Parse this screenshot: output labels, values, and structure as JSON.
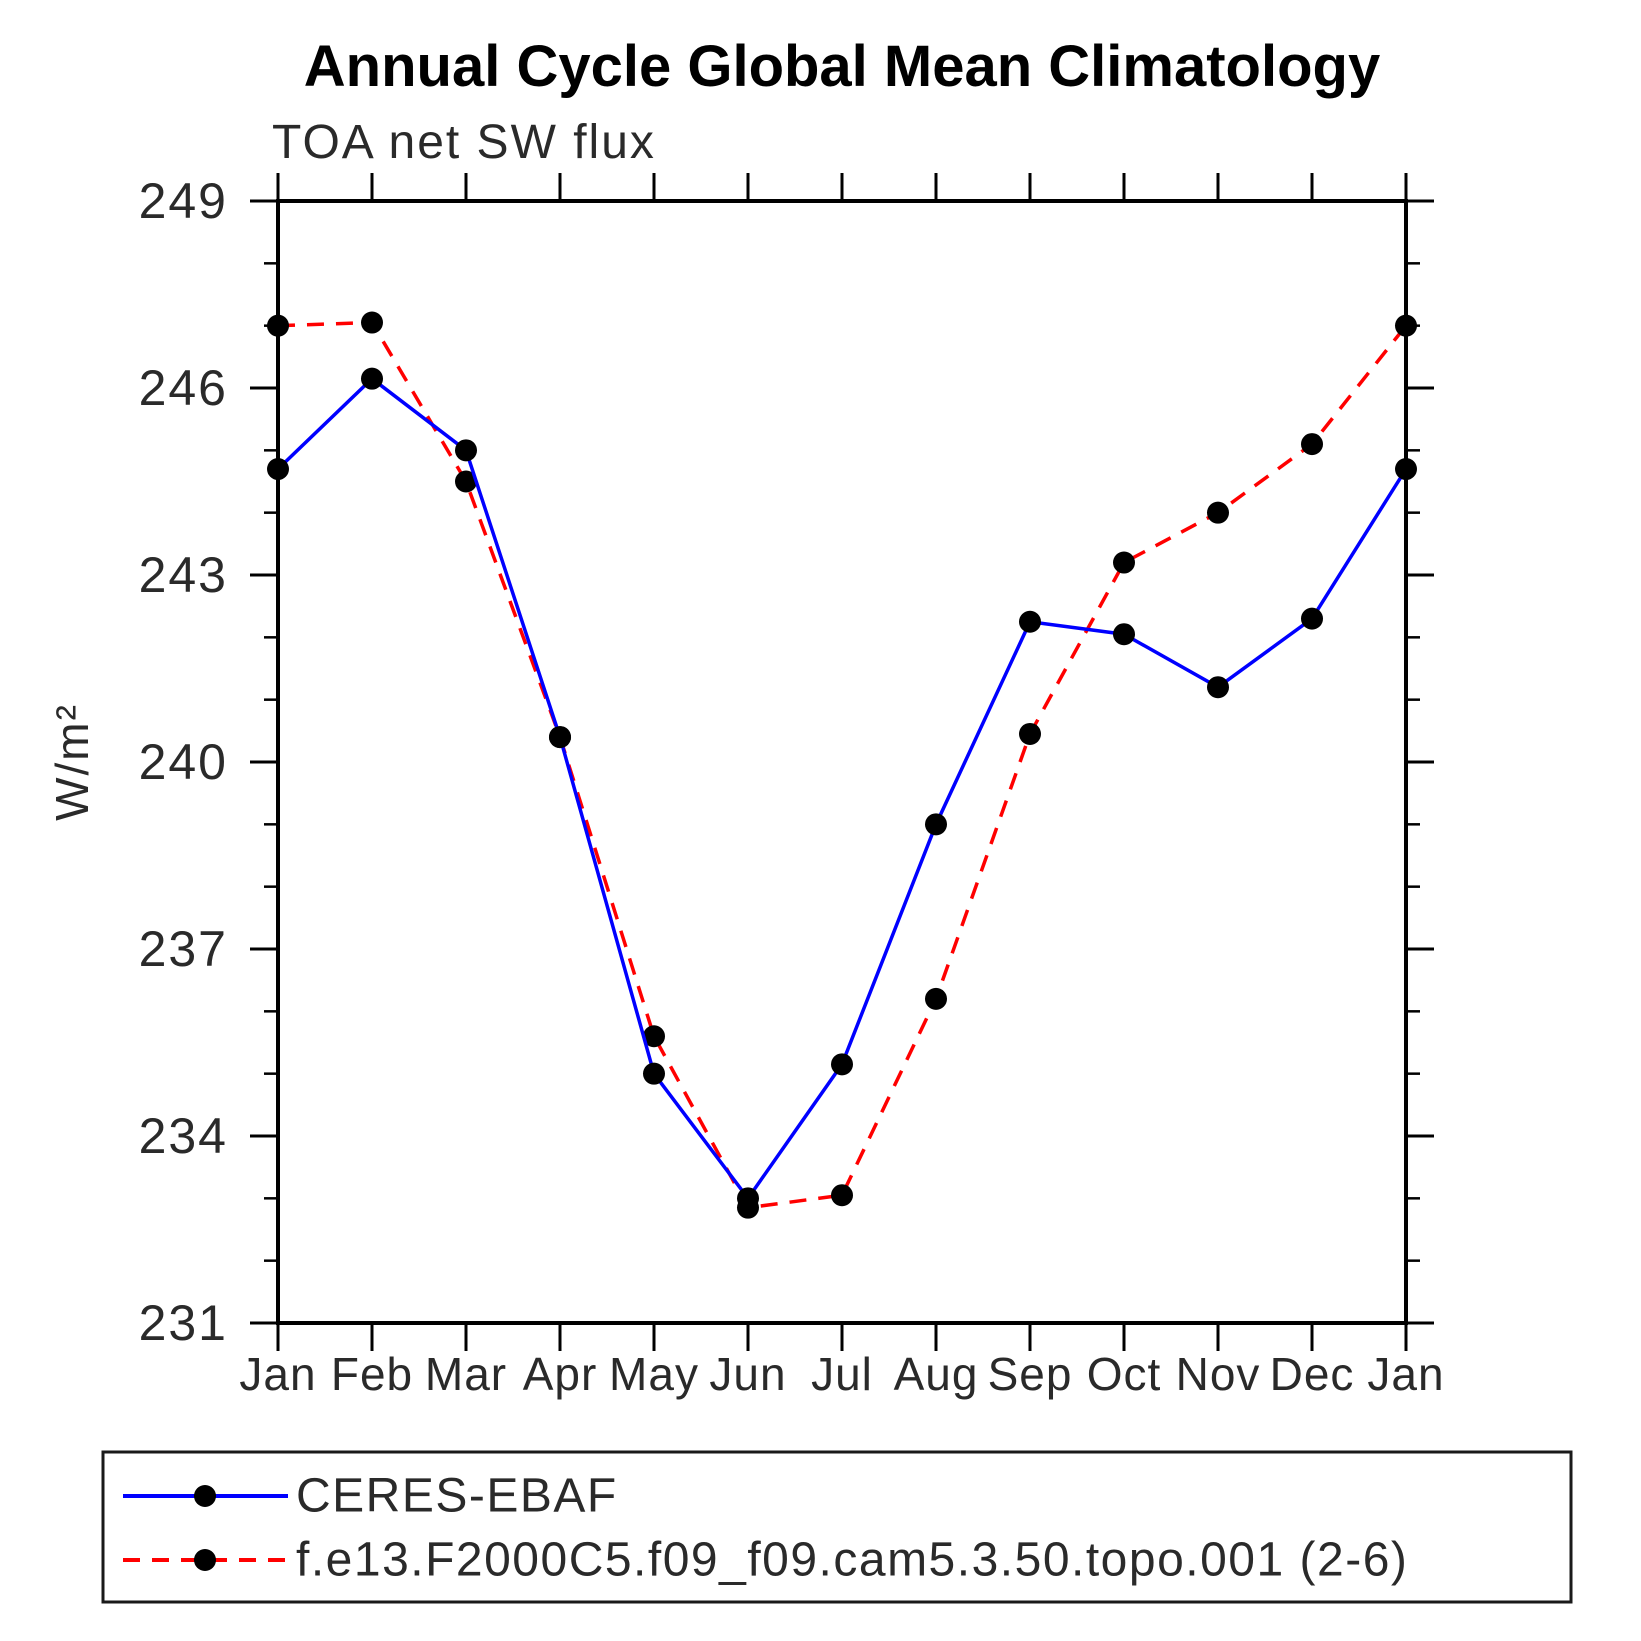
{
  "chart_data": {
    "type": "line",
    "title": "Annual Cycle Global Mean Climatology",
    "subtitle": "TOA net SW flux",
    "ylabel": "W/m²",
    "xlabel": "",
    "x_tick_labels": [
      "Jan",
      "Feb",
      "Mar",
      "Apr",
      "May",
      "Jun",
      "Jul",
      "Aug",
      "Sep",
      "Oct",
      "Nov",
      "Dec",
      "Jan"
    ],
    "ylim": [
      231,
      249
    ],
    "y_major_ticks": [
      231,
      234,
      237,
      240,
      243,
      246,
      249
    ],
    "y_minor_tick_interval": 1,
    "grid": false,
    "legend_position": "bottom-left-box",
    "marker": "filled-circle",
    "marker_color": "#000000",
    "frame_color": "#000000",
    "text_color": "#222222",
    "series": [
      {
        "name": "CERES-EBAF",
        "color": "#0000ff",
        "line_style": "solid",
        "values": [
          244.7,
          246.15,
          245.0,
          240.4,
          235.0,
          233.0,
          235.15,
          239.0,
          242.25,
          242.05,
          241.2,
          242.3,
          244.7
        ]
      },
      {
        "name": "f.e13.F2000C5.f09_f09.cam5.3.50.topo.001 (2-6)",
        "color": "#ff0000",
        "line_style": "dashed",
        "values": [
          247.0,
          247.05,
          244.5,
          240.4,
          235.6,
          232.85,
          233.05,
          236.2,
          240.45,
          243.2,
          244.0,
          245.1,
          247.0
        ]
      }
    ]
  }
}
